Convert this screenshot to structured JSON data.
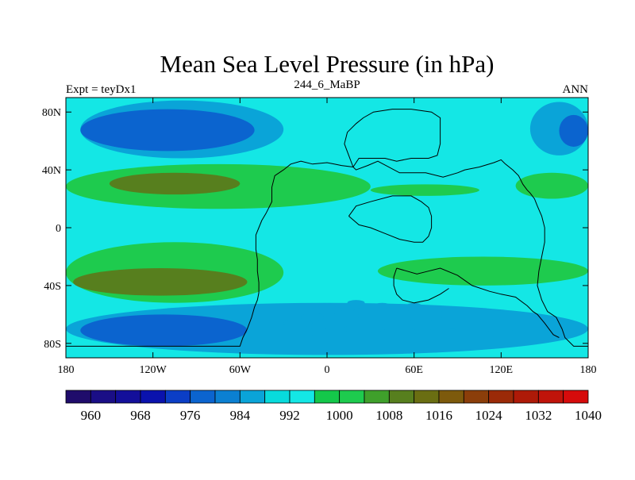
{
  "chart_data": {
    "type": "heatmap",
    "title": "Mean Sea Level Pressure (in hPa)",
    "subtitle_left": "Expt = teyDx1",
    "subtitle_center": "244_6_MaBP",
    "subtitle_right": "ANN",
    "x_range": [
      -180,
      180
    ],
    "y_range": [
      -90,
      90
    ],
    "x_ticks": [
      {
        "value": -180,
        "label": "180"
      },
      {
        "value": -120,
        "label": "120W"
      },
      {
        "value": -60,
        "label": "60W"
      },
      {
        "value": 0,
        "label": "0"
      },
      {
        "value": 60,
        "label": "60E"
      },
      {
        "value": 120,
        "label": "120E"
      },
      {
        "value": 180,
        "label": "180"
      }
    ],
    "y_ticks": [
      {
        "value": 80,
        "label": "80N"
      },
      {
        "value": 40,
        "label": "40N"
      },
      {
        "value": 0,
        "label": "0"
      },
      {
        "value": -40,
        "label": "40S"
      },
      {
        "value": -80,
        "label": "80S"
      }
    ],
    "colorbar": {
      "colors": [
        "#1f0c6b",
        "#1a0e86",
        "#130f9a",
        "#0a12ad",
        "#0b3ec6",
        "#0b64cf",
        "#0b80d2",
        "#0aa4d8",
        "#08dbdc",
        "#14e7e5",
        "#14c84a",
        "#1ecb4e",
        "#3fa02b",
        "#577f1e",
        "#6a6e12",
        "#7d5a0c",
        "#8b3e0a",
        "#9b2a08",
        "#ae1a08",
        "#c0140a",
        "#d60b0b"
      ],
      "labels": [
        {
          "boundary": 1,
          "text": "960"
        },
        {
          "boundary": 3,
          "text": "968"
        },
        {
          "boundary": 5,
          "text": "976"
        },
        {
          "boundary": 7,
          "text": "984"
        },
        {
          "boundary": 9,
          "text": "992"
        },
        {
          "boundary": 11,
          "text": "1000"
        },
        {
          "boundary": 13,
          "text": "1008"
        },
        {
          "boundary": 15,
          "text": "1016"
        },
        {
          "boundary": 17,
          "text": "1024"
        },
        {
          "boundary": 19,
          "text": "1032"
        },
        {
          "boundary": 21,
          "text": "1040"
        }
      ]
    },
    "background_color": "#14e7e5",
    "fields": [
      {
        "name": "north-high-lat-low-west",
        "color": "#0aa4d8",
        "lon": [
          -170,
          -30
        ],
        "lat": [
          48,
          88
        ]
      },
      {
        "name": "north-high-lat-core-west",
        "color": "#0b64cf",
        "lon": [
          -170,
          -50
        ],
        "lat": [
          53,
          82
        ]
      },
      {
        "name": "north-high-lat-low-east",
        "color": "#0aa4d8",
        "lon": [
          140,
          180
        ],
        "lat": [
          50,
          87
        ]
      },
      {
        "name": "north-high-lat-core-east",
        "color": "#0b64cf",
        "lon": [
          160,
          180
        ],
        "lat": [
          56,
          78
        ]
      },
      {
        "name": "north-subtropical-high-pacific",
        "color": "#1ecb4e",
        "lon": [
          -180,
          30
        ],
        "lat": [
          13,
          44
        ]
      },
      {
        "name": "north-subtropical-core-pacific",
        "color": "#577f1e",
        "lon": [
          -150,
          -60
        ],
        "lat": [
          23,
          38
        ]
      },
      {
        "name": "north-subtropical-high-east",
        "color": "#1ecb4e",
        "lon": [
          130,
          180
        ],
        "lat": [
          20,
          38
        ]
      },
      {
        "name": "north-subtropical-high-mid",
        "color": "#1ecb4e",
        "lon": [
          30,
          105
        ],
        "lat": [
          22,
          30
        ]
      },
      {
        "name": "south-subtropical-high-pacific",
        "color": "#1ecb4e",
        "lon": [
          -180,
          -30
        ],
        "lat": [
          -52,
          -10
        ]
      },
      {
        "name": "south-subtropical-core-pacific",
        "color": "#577f1e",
        "lon": [
          -175,
          -55
        ],
        "lat": [
          -47,
          -28
        ]
      },
      {
        "name": "south-subtropical-high-indian",
        "color": "#1ecb4e",
        "lon": [
          35,
          180
        ],
        "lat": [
          -40,
          -20
        ]
      },
      {
        "name": "south-high-lat-low",
        "color": "#0aa4d8",
        "lon": [
          -180,
          180
        ],
        "lat": [
          -88,
          -52
        ]
      },
      {
        "name": "south-high-lat-core",
        "color": "#0b64cf",
        "lon": [
          -170,
          -55
        ],
        "lat": [
          -82,
          -60
        ]
      }
    ],
    "coastline": [
      [
        [
          -180,
          -82
        ],
        [
          -60,
          -82
        ],
        [
          -58,
          -76
        ],
        [
          -55,
          -70
        ],
        [
          -52,
          -62
        ],
        [
          -50,
          -55
        ],
        [
          -48,
          -50
        ],
        [
          -47,
          -45
        ],
        [
          -47,
          -38
        ],
        [
          -48,
          -30
        ],
        [
          -48,
          -22
        ],
        [
          -49,
          -15
        ],
        [
          -49,
          -5
        ],
        [
          -47,
          0
        ],
        [
          -45,
          5
        ],
        [
          -42,
          10
        ],
        [
          -38,
          18
        ],
        [
          -38,
          28
        ],
        [
          -36,
          36
        ],
        [
          -30,
          40
        ],
        [
          -25,
          44
        ],
        [
          -18,
          46
        ],
        [
          -10,
          44
        ],
        [
          0,
          45
        ],
        [
          5,
          44
        ],
        [
          10,
          43
        ],
        [
          18,
          42
        ],
        [
          20,
          40
        ],
        [
          28,
          43
        ],
        [
          35,
          46
        ],
        [
          50,
          38
        ],
        [
          68,
          38
        ],
        [
          80,
          35
        ],
        [
          90,
          38
        ],
        [
          95,
          40
        ],
        [
          105,
          42
        ],
        [
          115,
          45
        ],
        [
          120,
          47
        ],
        [
          123,
          44
        ],
        [
          128,
          40
        ],
        [
          132,
          36
        ],
        [
          135,
          30
        ],
        [
          138,
          26
        ],
        [
          140,
          24
        ],
        [
          143,
          20
        ],
        [
          145,
          15
        ],
        [
          148,
          8
        ],
        [
          150,
          0
        ],
        [
          150,
          -10
        ],
        [
          148,
          -20
        ],
        [
          146,
          -30
        ],
        [
          145,
          -40
        ],
        [
          148,
          -50
        ],
        [
          152,
          -58
        ],
        [
          158,
          -62
        ],
        [
          162,
          -70
        ],
        [
          164,
          -76
        ],
        [
          170,
          -82
        ],
        [
          180,
          -82
        ]
      ],
      [
        [
          18,
          42
        ],
        [
          15,
          50
        ],
        [
          12,
          58
        ],
        [
          14,
          66
        ],
        [
          20,
          72
        ],
        [
          25,
          76
        ],
        [
          32,
          80
        ],
        [
          45,
          82
        ],
        [
          58,
          82
        ],
        [
          72,
          80
        ],
        [
          78,
          76
        ],
        [
          78,
          68
        ],
        [
          78,
          58
        ],
        [
          76,
          50
        ],
        [
          70,
          48
        ],
        [
          66,
          48
        ],
        [
          58,
          48
        ],
        [
          48,
          46
        ],
        [
          40,
          48
        ],
        [
          30,
          48
        ],
        [
          22,
          48
        ],
        [
          18,
          42
        ]
      ],
      [
        [
          15,
          8
        ],
        [
          20,
          15
        ],
        [
          30,
          18
        ],
        [
          45,
          22
        ],
        [
          58,
          22
        ],
        [
          65,
          18
        ],
        [
          70,
          14
        ],
        [
          72,
          8
        ],
        [
          72,
          0
        ],
        [
          70,
          -6
        ],
        [
          66,
          -10
        ],
        [
          60,
          -10
        ],
        [
          50,
          -8
        ],
        [
          40,
          -4
        ],
        [
          30,
          0
        ],
        [
          22,
          2
        ],
        [
          15,
          8
        ]
      ],
      [
        [
          48,
          -28
        ],
        [
          55,
          -30
        ],
        [
          62,
          -32
        ],
        [
          70,
          -30
        ],
        [
          78,
          -28
        ],
        [
          90,
          -33
        ],
        [
          100,
          -40
        ],
        [
          112,
          -44
        ],
        [
          120,
          -46
        ],
        [
          130,
          -48
        ],
        [
          138,
          -54
        ],
        [
          142,
          -58
        ],
        [
          145,
          -60
        ],
        [
          150,
          -66
        ],
        [
          153,
          -70
        ],
        [
          156,
          -74
        ],
        [
          160,
          -76
        ]
      ],
      [
        [
          48,
          -28
        ],
        [
          46,
          -34
        ],
        [
          46,
          -40
        ],
        [
          48,
          -46
        ],
        [
          52,
          -50
        ],
        [
          60,
          -52
        ],
        [
          70,
          -50
        ],
        [
          78,
          -46
        ],
        [
          84,
          -42
        ]
      ]
    ],
    "speckles": [
      [
        15,
        -60,
        10,
        -3
      ],
      [
        30,
        -58,
        12,
        -3
      ],
      [
        45,
        -62,
        8,
        -4
      ],
      [
        60,
        -55,
        6,
        -3
      ],
      [
        75,
        -60,
        6,
        -3
      ],
      [
        -10,
        -62,
        8,
        -3
      ],
      [
        0,
        -57,
        10,
        -3
      ],
      [
        20,
        -52,
        6,
        -2
      ],
      [
        38,
        -54,
        6,
        -2
      ],
      [
        65,
        -63,
        8,
        -2
      ],
      [
        90,
        -68,
        6,
        -2
      ],
      [
        110,
        -62,
        6,
        -2
      ],
      [
        135,
        -65,
        6,
        -2
      ],
      [
        -30,
        -60,
        6,
        -2
      ],
      [
        -20,
        -66,
        10,
        -3
      ],
      [
        25,
        -70,
        14,
        -3
      ],
      [
        50,
        -72,
        12,
        -3
      ],
      [
        80,
        -72,
        10,
        -3
      ],
      [
        120,
        -73,
        10,
        -3
      ],
      [
        -5,
        -72,
        8,
        -3
      ]
    ]
  }
}
